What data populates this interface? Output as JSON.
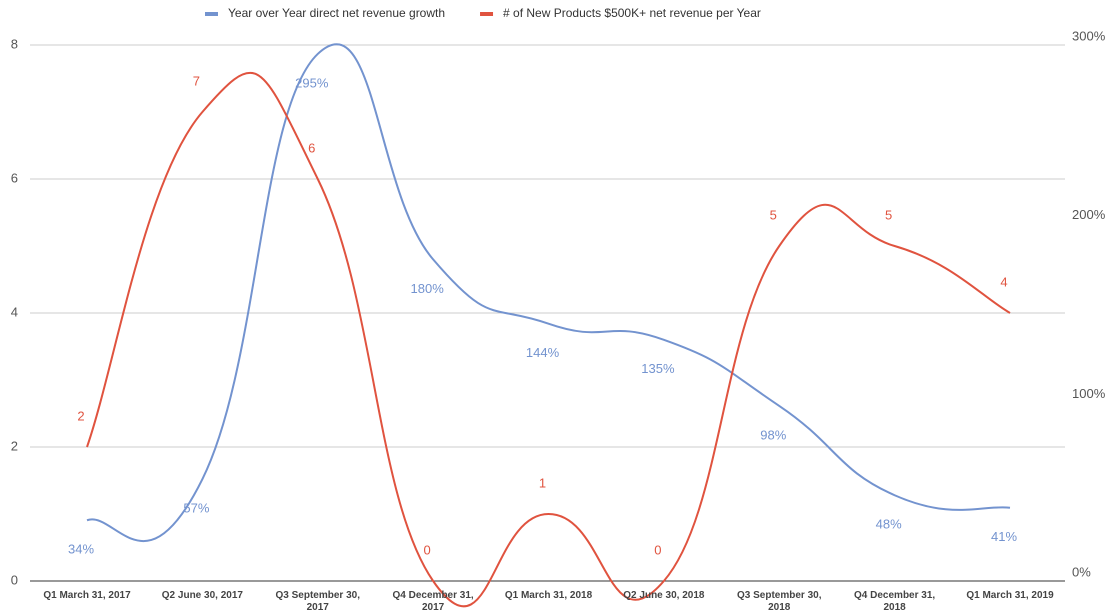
{
  "chart_data": {
    "type": "line",
    "categories": [
      "Q1 March 31, 2017",
      "Q2 June 30, 2017",
      "Q3 September 30, 2017",
      "Q4 December 31, 2017",
      "Q1 March 31, 2018",
      "Q2 June 30, 2018",
      "Q3 September 30, 2018",
      "Q4 December 31, 2018",
      "Q1 March 31, 2019"
    ],
    "series": [
      {
        "name": "Year over Year direct net revenue growth",
        "color": "#7393cf",
        "axis": "y2",
        "values": [
          34,
          57,
          295,
          180,
          144,
          135,
          98,
          48,
          41
        ],
        "value_labels": [
          "34%",
          "57%",
          "295%",
          "180%",
          "144%",
          "135%",
          "98%",
          "48%",
          "41%"
        ]
      },
      {
        "name": "# of New Products $500K+ net revenue per Year",
        "color": "#e0533f",
        "values": [
          2,
          7,
          6,
          0,
          1,
          0,
          5,
          5,
          4
        ]
      }
    ],
    "ylim": [
      0,
      8
    ],
    "yticks": [
      0,
      2,
      4,
      6,
      8
    ],
    "y2lim": [
      0,
      300
    ],
    "y2ticks": [
      {
        "value": 0,
        "label": "0%"
      },
      {
        "value": 100,
        "label": "100%"
      },
      {
        "value": 200,
        "label": "200%"
      },
      {
        "value": 300,
        "label": "300%"
      }
    ],
    "grid": true,
    "legend": "top",
    "smooth": true
  }
}
